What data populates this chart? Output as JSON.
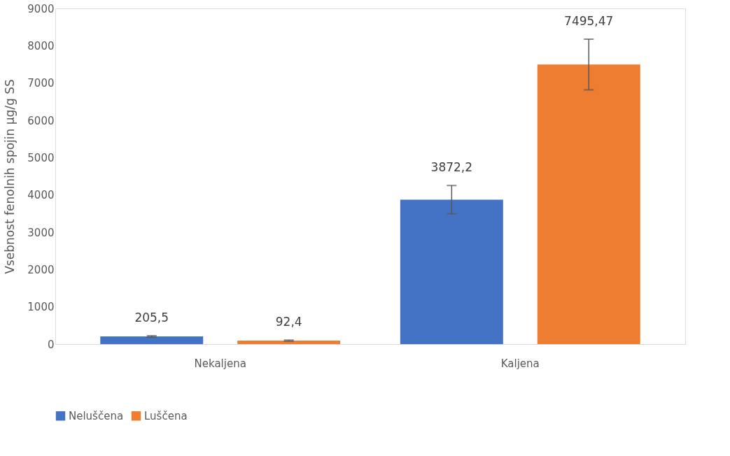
{
  "chart_data": {
    "type": "bar",
    "ylabel": "Vsebnost fenolnih spojin µg/g SS",
    "categories": [
      "Nekaljena",
      "Kaljena"
    ],
    "series": [
      {
        "name": "Neluščena",
        "color": "#4472c4",
        "values": [
          205.5,
          3872.2
        ],
        "errors": [
          20,
          380
        ],
        "value_labels": [
          "205,5",
          "3872,2"
        ]
      },
      {
        "name": "Luščena",
        "color": "#ed7d31",
        "values": [
          92.4,
          7495.47
        ],
        "errors": [
          15,
          680
        ],
        "value_labels": [
          "92,4",
          "7495,47"
        ]
      }
    ],
    "ylim": [
      0,
      9000
    ],
    "yticks": [
      0,
      1000,
      2000,
      3000,
      4000,
      5000,
      6000,
      7000,
      8000,
      9000
    ],
    "grid": false,
    "legend": "bottom"
  }
}
